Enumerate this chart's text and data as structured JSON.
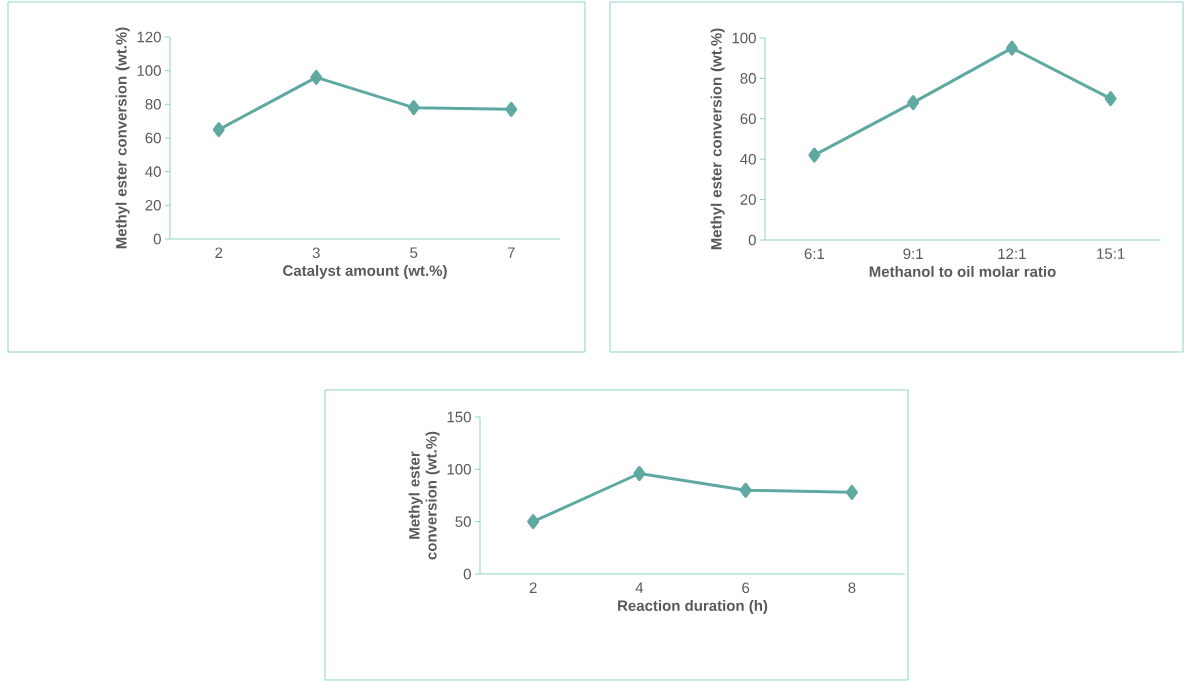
{
  "chart_data": [
    {
      "type": "line",
      "xlabel": "Catalyst amount (wt.%)",
      "ylabel": "Methyl ester conversion (wt.%)",
      "categories": [
        "2",
        "3",
        "5",
        "7"
      ],
      "values": [
        65,
        96,
        78,
        77
      ],
      "color": "#5fa9a2",
      "marker": "diamond",
      "line_style": "solid",
      "ylim": [
        0,
        120
      ],
      "yticks": [
        0,
        20,
        40,
        60,
        80,
        100,
        120
      ]
    },
    {
      "type": "line",
      "xlabel": "Methanol to oil molar ratio",
      "ylabel": "Methyl ester conversion (wt.%)",
      "categories": [
        "6:1",
        "9:1",
        "12:1",
        "15:1"
      ],
      "values": [
        42,
        68,
        95,
        70
      ],
      "color": "#5fa9a2",
      "marker": "diamond",
      "line_style": "solid",
      "ylim": [
        0,
        100
      ],
      "yticks": [
        0,
        20,
        40,
        60,
        80,
        100
      ]
    },
    {
      "type": "line",
      "xlabel": "Reaction duration (h)",
      "ylabel": "Methyl ester conversion (wt.%)",
      "categories": [
        "2",
        "4",
        "6",
        "8"
      ],
      "values": [
        50,
        96,
        80,
        78
      ],
      "color": "#5fa9a2",
      "marker": "diamond",
      "line_style": "solid",
      "ylim": [
        0,
        150
      ],
      "yticks": [
        0,
        50,
        100,
        150
      ]
    }
  ]
}
